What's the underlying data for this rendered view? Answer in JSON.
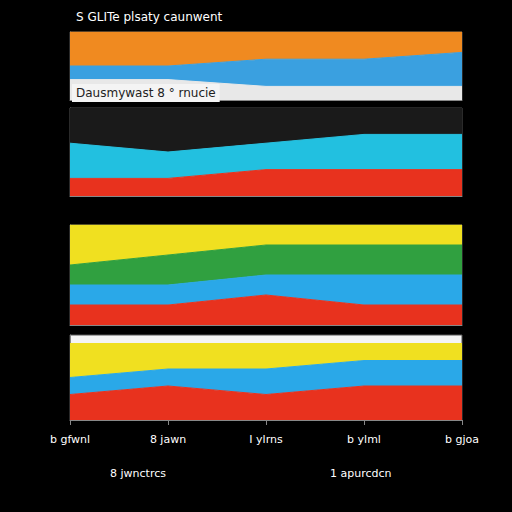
{
  "chart_data": [
    {
      "type": "area",
      "title": "S GLITe plsaty caunwent",
      "categories": [
        null,
        null,
        null,
        null,
        null
      ],
      "stacked": true,
      "tick_labels": false,
      "ylim": [
        0,
        10
      ],
      "series": [
        {
          "color": "#e8e8e8",
          "values": [
            3,
            3,
            2,
            2,
            2
          ]
        },
        {
          "color": "#3aa0e0",
          "values": [
            2,
            2,
            4,
            4,
            5
          ]
        },
        {
          "color": "#f08a20",
          "values": [
            5,
            5,
            4,
            4,
            3
          ]
        }
      ]
    },
    {
      "type": "area",
      "title": "Dausmywast 8 ° rnucie",
      "categories": [
        null,
        null,
        null,
        null,
        null
      ],
      "stacked": true,
      "tick_labels": false,
      "ylim": [
        0,
        10
      ],
      "series": [
        {
          "color": "#e8321e",
          "values": [
            2,
            2,
            3,
            3,
            3
          ]
        },
        {
          "color": "#22c0e0",
          "values": [
            4,
            3,
            3,
            4,
            4
          ]
        },
        {
          "color": "#1a1a1a",
          "values": [
            4,
            5,
            4,
            3,
            3
          ]
        }
      ]
    },
    {
      "type": "area",
      "categories": [
        null,
        null,
        null,
        null,
        null
      ],
      "stacked": true,
      "tick_labels": false,
      "ylim": [
        0,
        10
      ],
      "series": [
        {
          "color": "#e8321e",
          "values": [
            2,
            2,
            3,
            2,
            2
          ]
        },
        {
          "color": "#2aa8e8",
          "values": [
            2,
            2,
            2,
            3,
            3
          ]
        },
        {
          "color": "#30a040",
          "values": [
            2,
            3,
            3,
            3,
            3
          ]
        },
        {
          "color": "#f0e020",
          "values": [
            4,
            3,
            2,
            2,
            2
          ]
        }
      ]
    },
    {
      "type": "area",
      "categories": [
        "b gfwnl",
        "8 jawn",
        "I ylrns",
        "b ylml",
        "b gjoa"
      ],
      "annotations": [
        "8 jwnctrcs",
        "1 apurcdcn"
      ],
      "stacked": true,
      "tick_labels": "x",
      "ylim": [
        0,
        10
      ],
      "series": [
        {
          "color": "#e8321e",
          "values": [
            3,
            4,
            3,
            4,
            4
          ]
        },
        {
          "color": "#2aa8e8",
          "values": [
            2,
            2,
            3,
            3,
            3
          ]
        },
        {
          "color": "#f0e020",
          "values": [
            4,
            3,
            3,
            2,
            2
          ]
        }
      ]
    }
  ]
}
